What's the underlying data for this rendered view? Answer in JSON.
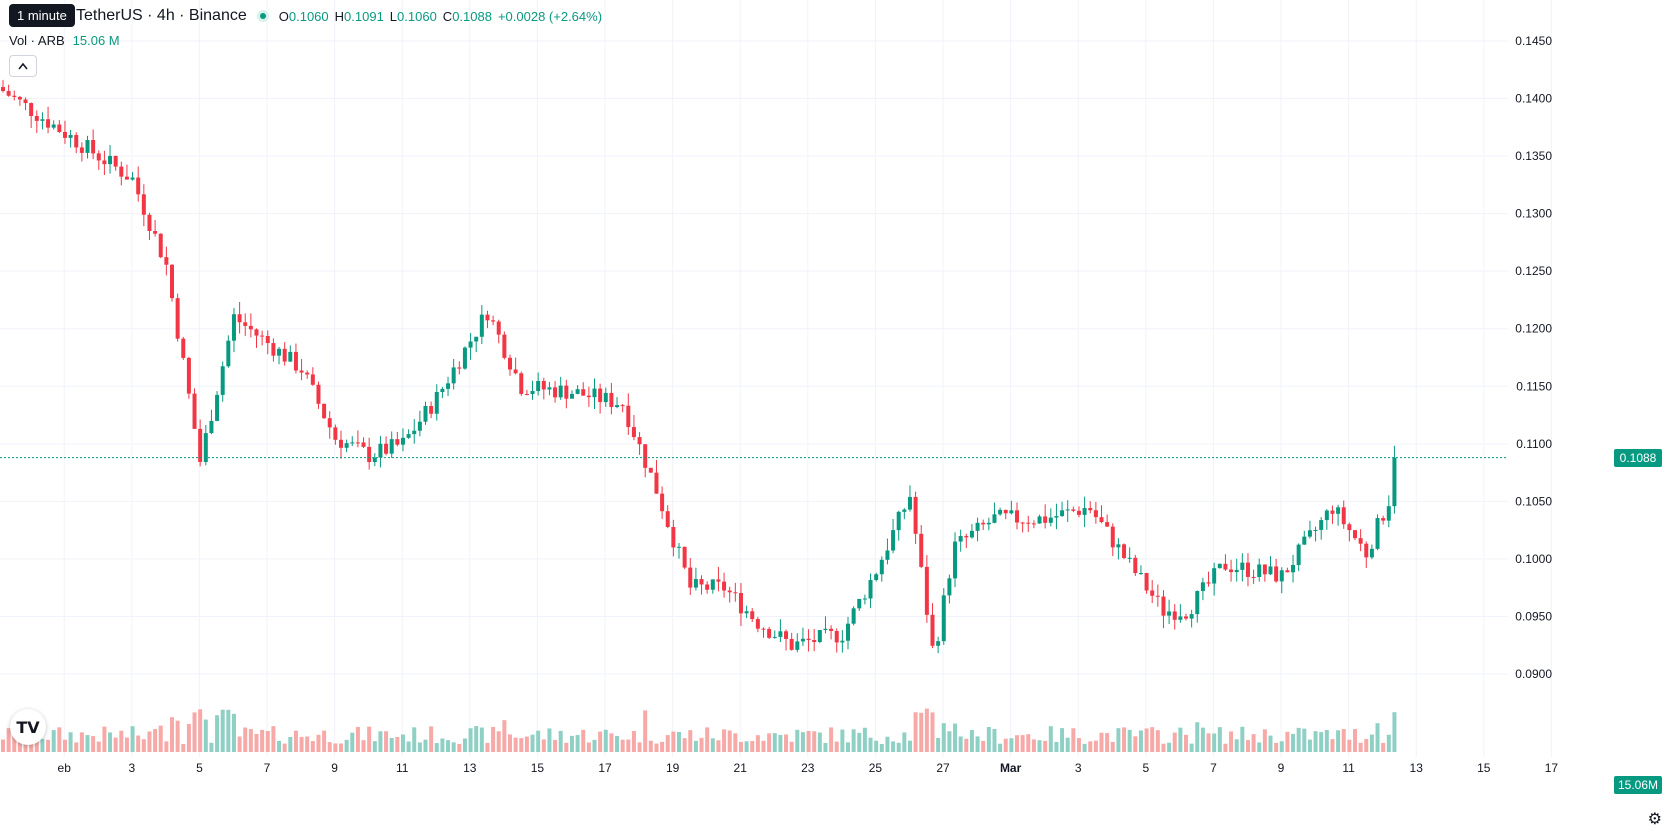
{
  "header": {
    "symbol": "TetherUS · 4h · Binance",
    "tooltip": "1 minute",
    "ohlc": [
      {
        "k": "O",
        "v": "0.1060"
      },
      {
        "k": "H",
        "v": "0.1091"
      },
      {
        "k": "L",
        "v": "0.1060"
      },
      {
        "k": "C",
        "v": "0.1088"
      }
    ],
    "change": "+0.0028 (+2.64%)",
    "vol_label": "Vol · ARB",
    "vol_value": "15.06 M",
    "collapse_icon": "chevron-up-icon"
  },
  "last_price_tag": "0.1088",
  "volume_tag": "15.06M",
  "colors": {
    "up": "#089981",
    "down": "#f23645",
    "up_vol": "#8fd0c5",
    "down_vol": "#f7a9a7",
    "grid": "#f0f3fa"
  },
  "chart_data": {
    "type": "candlestick",
    "symbol": "ARB/USDT",
    "interval": "4h",
    "x_tick_labels": [
      "eb",
      "3",
      "5",
      "7",
      "9",
      "11",
      "13",
      "15",
      "17",
      "19",
      "21",
      "23",
      "25",
      "27",
      "Mar",
      "3",
      "5",
      "7",
      "9",
      "11",
      "13",
      "15",
      "17"
    ],
    "y_tick_labels": [
      "0.1450",
      "0.1400",
      "0.1350",
      "0.1300",
      "0.1250",
      "0.1200",
      "0.1150",
      "0.1100",
      "0.1050",
      "0.1000",
      "0.0950",
      "0.0900"
    ],
    "ylim": [
      0.0865,
      0.1468
    ],
    "last_price": 0.1088,
    "last_volume": "15.06M",
    "grid": true,
    "daily_close_path": [
      [
        0,
        0.141
      ],
      [
        2,
        0.137
      ],
      [
        4,
        0.133
      ],
      [
        5,
        0.1255
      ],
      [
        6,
        0.1085
      ],
      [
        7,
        0.121
      ],
      [
        9,
        0.1165
      ],
      [
        10,
        0.1105
      ],
      [
        11,
        0.109
      ],
      [
        12,
        0.11
      ],
      [
        13,
        0.114
      ],
      [
        14.5,
        0.1215
      ],
      [
        15.5,
        0.115
      ],
      [
        17,
        0.1145
      ],
      [
        18.5,
        0.1135
      ],
      [
        19.5,
        0.106
      ],
      [
        20.5,
        0.0975
      ],
      [
        21.5,
        0.0975
      ],
      [
        22.5,
        0.0945
      ],
      [
        23.5,
        0.0925
      ],
      [
        25,
        0.0935
      ],
      [
        26,
        0.099
      ],
      [
        27,
        0.1055
      ],
      [
        27.7,
        0.0915
      ],
      [
        28.3,
        0.101
      ],
      [
        29.5,
        0.1035
      ],
      [
        31,
        0.1035
      ],
      [
        32.3,
        0.1045
      ],
      [
        33.5,
        0.0995
      ],
      [
        34.5,
        0.0955
      ],
      [
        35.2,
        0.0955
      ],
      [
        36.3,
        0.0995
      ],
      [
        38,
        0.0985
      ],
      [
        39.5,
        0.1045
      ],
      [
        40.5,
        0.1005
      ],
      [
        41.3,
        0.106
      ]
    ]
  }
}
